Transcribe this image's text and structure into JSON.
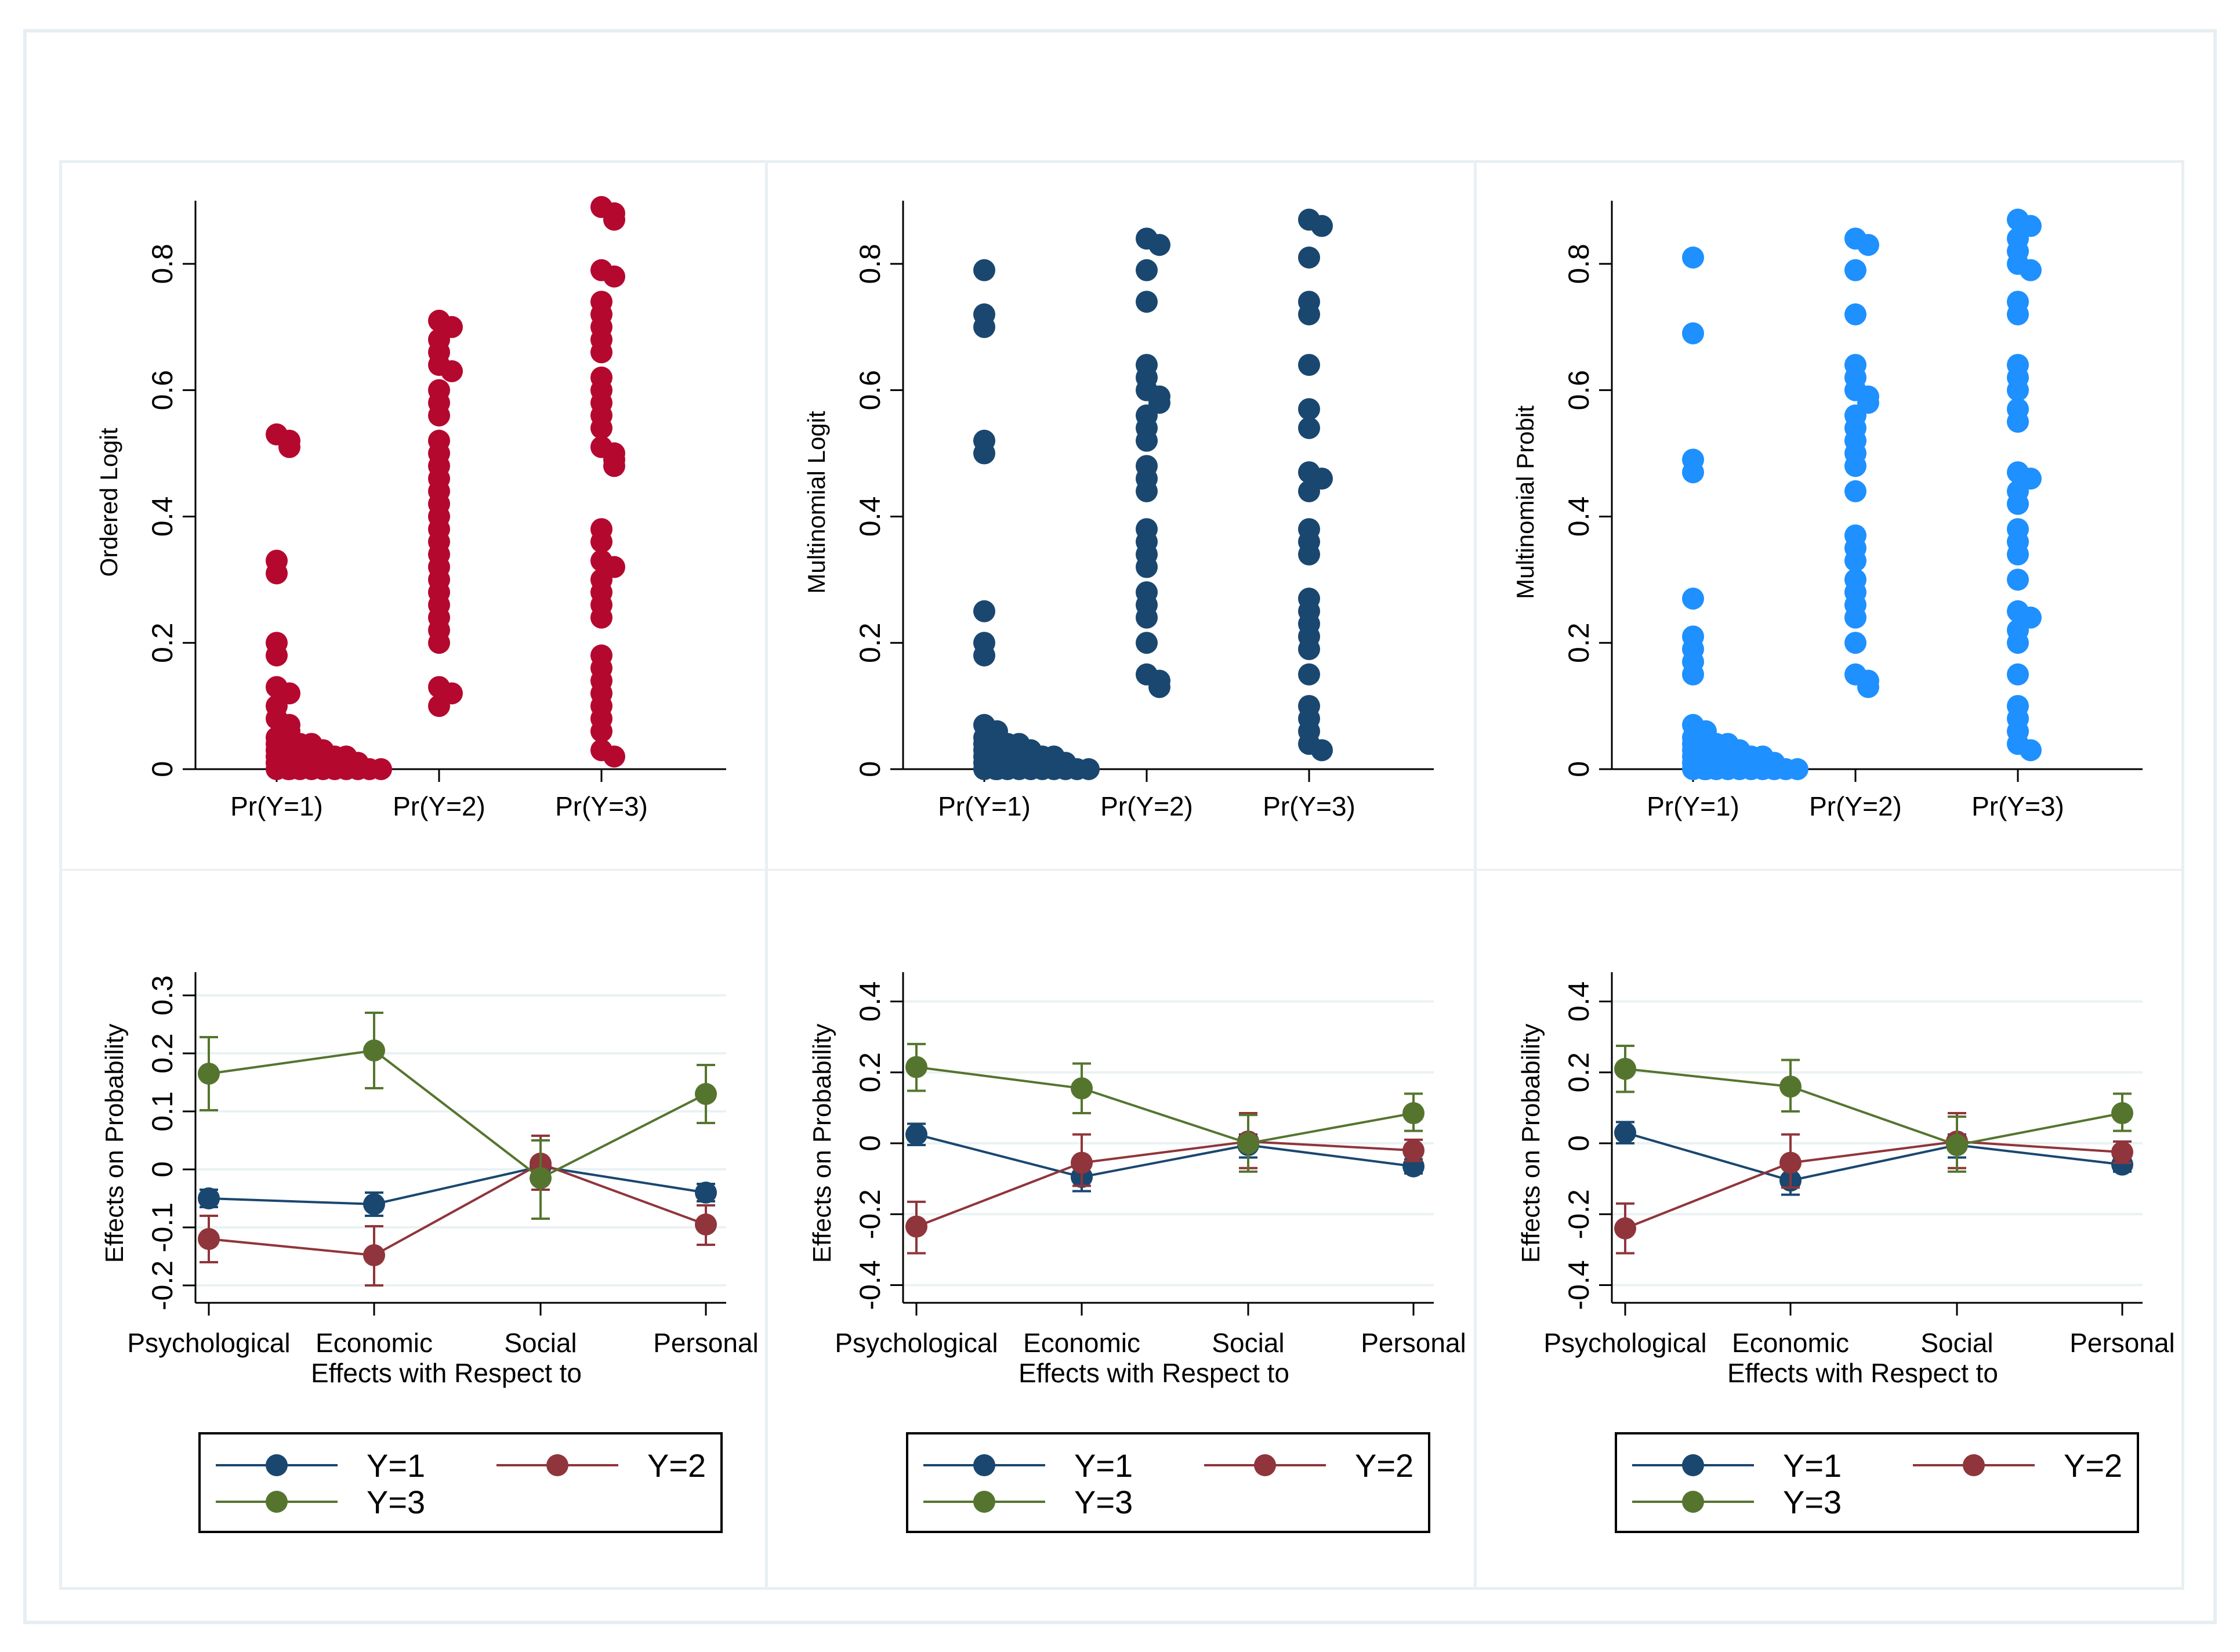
{
  "colors": {
    "ordered_logit": "#b5082f",
    "multinomial_logit": "#1a476f",
    "multinomial_probit": "#1e90ff",
    "y1": "#1a476f",
    "y2": "#90353b",
    "y3": "#55752f",
    "grid": "#eaf2f3",
    "axis": "#000000"
  },
  "chart_data": [
    {
      "type": "scatter",
      "panel": "top-left",
      "ylabel": "Ordered Logit",
      "xlabel": "",
      "categories": [
        "Pr(Y=1)",
        "Pr(Y=2)",
        "Pr(Y=3)"
      ],
      "ylim": [
        0,
        0.9
      ],
      "yticks": [
        0,
        0.2,
        0.4,
        0.6,
        0.8
      ],
      "ytick_labels": [
        "0",
        "0.2",
        "0.4",
        "0.6",
        "0.8"
      ],
      "color_key": "ordered_logit",
      "series": [
        {
          "name": "Pr(Y=1)",
          "values": [
            0.53,
            0.52,
            0.51,
            0.33,
            0.31,
            0.2,
            0.18,
            0.13,
            0.12,
            0.1,
            0.08,
            0.07,
            0.06,
            0.05,
            0.04,
            0.03,
            0.02,
            0.01,
            0.0
          ]
        },
        {
          "name": "Pr(Y=2)",
          "values": [
            0.71,
            0.7,
            0.68,
            0.66,
            0.64,
            0.63,
            0.6,
            0.58,
            0.56,
            0.52,
            0.5,
            0.48,
            0.46,
            0.44,
            0.42,
            0.4,
            0.38,
            0.36,
            0.34,
            0.32,
            0.3,
            0.28,
            0.26,
            0.24,
            0.22,
            0.2,
            0.13,
            0.12,
            0.1
          ]
        },
        {
          "name": "Pr(Y=3)",
          "values": [
            0.89,
            0.88,
            0.87,
            0.79,
            0.78,
            0.74,
            0.72,
            0.7,
            0.68,
            0.66,
            0.62,
            0.6,
            0.58,
            0.56,
            0.54,
            0.51,
            0.5,
            0.49,
            0.48,
            0.38,
            0.36,
            0.33,
            0.32,
            0.3,
            0.28,
            0.26,
            0.24,
            0.18,
            0.16,
            0.14,
            0.12,
            0.1,
            0.08,
            0.06,
            0.03,
            0.02
          ]
        }
      ]
    },
    {
      "type": "scatter",
      "panel": "top-middle",
      "ylabel": "Multinomial Logit",
      "xlabel": "",
      "categories": [
        "Pr(Y=1)",
        "Pr(Y=2)",
        "Pr(Y=3)"
      ],
      "ylim": [
        0,
        0.9
      ],
      "yticks": [
        0,
        0.2,
        0.4,
        0.6,
        0.8
      ],
      "ytick_labels": [
        "0",
        "0.2",
        "0.4",
        "0.6",
        "0.8"
      ],
      "color_key": "multinomial_logit",
      "series": [
        {
          "name": "Pr(Y=1)",
          "values": [
            0.79,
            0.72,
            0.7,
            0.52,
            0.5,
            0.25,
            0.2,
            0.18,
            0.07,
            0.06,
            0.05,
            0.04,
            0.03,
            0.02,
            0.01,
            0.0
          ]
        },
        {
          "name": "Pr(Y=2)",
          "values": [
            0.84,
            0.83,
            0.79,
            0.74,
            0.64,
            0.62,
            0.6,
            0.59,
            0.58,
            0.56,
            0.54,
            0.52,
            0.48,
            0.46,
            0.44,
            0.38,
            0.36,
            0.34,
            0.32,
            0.28,
            0.26,
            0.24,
            0.2,
            0.15,
            0.14,
            0.13
          ]
        },
        {
          "name": "Pr(Y=3)",
          "values": [
            0.87,
            0.86,
            0.81,
            0.74,
            0.72,
            0.64,
            0.57,
            0.54,
            0.47,
            0.46,
            0.44,
            0.38,
            0.36,
            0.34,
            0.27,
            0.25,
            0.23,
            0.21,
            0.19,
            0.15,
            0.1,
            0.08,
            0.06,
            0.04,
            0.03
          ]
        }
      ]
    },
    {
      "type": "scatter",
      "panel": "top-right",
      "ylabel": "Multinomial Probit",
      "xlabel": "",
      "categories": [
        "Pr(Y=1)",
        "Pr(Y=2)",
        "Pr(Y=3)"
      ],
      "ylim": [
        0,
        0.9
      ],
      "yticks": [
        0,
        0.2,
        0.4,
        0.6,
        0.8
      ],
      "ytick_labels": [
        "0",
        "0.2",
        "0.4",
        "0.6",
        "0.8"
      ],
      "color_key": "multinomial_probit",
      "series": [
        {
          "name": "Pr(Y=1)",
          "values": [
            0.81,
            0.69,
            0.49,
            0.47,
            0.27,
            0.21,
            0.19,
            0.17,
            0.15,
            0.07,
            0.06,
            0.05,
            0.04,
            0.03,
            0.02,
            0.01,
            0.0
          ]
        },
        {
          "name": "Pr(Y=2)",
          "values": [
            0.84,
            0.83,
            0.79,
            0.72,
            0.64,
            0.62,
            0.6,
            0.59,
            0.58,
            0.56,
            0.54,
            0.52,
            0.5,
            0.48,
            0.44,
            0.37,
            0.35,
            0.33,
            0.3,
            0.28,
            0.26,
            0.24,
            0.2,
            0.15,
            0.14,
            0.13
          ]
        },
        {
          "name": "Pr(Y=3)",
          "values": [
            0.87,
            0.86,
            0.84,
            0.82,
            0.8,
            0.79,
            0.74,
            0.72,
            0.64,
            0.62,
            0.6,
            0.57,
            0.55,
            0.47,
            0.46,
            0.44,
            0.42,
            0.38,
            0.36,
            0.34,
            0.3,
            0.25,
            0.24,
            0.22,
            0.2,
            0.15,
            0.1,
            0.08,
            0.06,
            0.04,
            0.03
          ]
        }
      ]
    },
    {
      "type": "line",
      "panel": "bottom-left",
      "ylabel": "Effects on Probability",
      "xlabel": "Effects with Respect to",
      "categories": [
        "Psychological",
        "Economic",
        "Social",
        "Personal"
      ],
      "ylim": [
        -0.23,
        0.32
      ],
      "yticks": [
        -0.2,
        -0.1,
        0,
        0.1,
        0.2,
        0.3
      ],
      "ytick_labels": [
        "-0.2",
        "-0.1",
        "0",
        "0.1",
        "0.2",
        "0.3"
      ],
      "legend_position": "bottom",
      "series": [
        {
          "name": "Y=1",
          "color_key": "y1",
          "values": [
            -0.05,
            -0.06,
            0.005,
            -0.04
          ],
          "ci_low": [
            -0.065,
            -0.08,
            -0.005,
            -0.055
          ],
          "ci_high": [
            -0.035,
            -0.04,
            0.015,
            -0.025
          ]
        },
        {
          "name": "Y=2",
          "color_key": "y2",
          "values": [
            -0.12,
            -0.148,
            0.01,
            -0.095
          ],
          "ci_low": [
            -0.16,
            -0.2,
            -0.035,
            -0.13
          ],
          "ci_high": [
            -0.08,
            -0.098,
            0.058,
            -0.062
          ]
        },
        {
          "name": "Y=3",
          "color_key": "y3",
          "values": [
            0.165,
            0.205,
            -0.015,
            0.13
          ],
          "ci_low": [
            0.102,
            0.14,
            -0.085,
            0.08
          ],
          "ci_high": [
            0.228,
            0.27,
            0.05,
            0.18
          ]
        }
      ],
      "legend": [
        "Y=1",
        "Y=2",
        "Y=3"
      ]
    },
    {
      "type": "line",
      "panel": "bottom-middle",
      "ylabel": "Effects on Probability",
      "xlabel": "Effects with Respect to",
      "categories": [
        "Psychological",
        "Economic",
        "Social",
        "Personal"
      ],
      "ylim": [
        -0.45,
        0.45
      ],
      "yticks": [
        -0.4,
        -0.2,
        0,
        0.2,
        0.4
      ],
      "ytick_labels": [
        "-0.4",
        "-0.2",
        "0",
        "0.2",
        "0.4"
      ],
      "legend_position": "bottom",
      "series": [
        {
          "name": "Y=1",
          "color_key": "y1",
          "values": [
            0.025,
            -0.095,
            -0.005,
            -0.065
          ],
          "ci_low": [
            -0.005,
            -0.135,
            -0.04,
            -0.085
          ],
          "ci_high": [
            0.055,
            -0.06,
            0.025,
            -0.045
          ]
        },
        {
          "name": "Y=2",
          "color_key": "y2",
          "values": [
            -0.235,
            -0.055,
            0.005,
            -0.02
          ],
          "ci_low": [
            -0.31,
            -0.12,
            -0.07,
            -0.05
          ],
          "ci_high": [
            -0.165,
            0.025,
            0.085,
            0.01
          ]
        },
        {
          "name": "Y=3",
          "color_key": "y3",
          "values": [
            0.215,
            0.155,
            0.0,
            0.085
          ],
          "ci_low": [
            0.148,
            0.085,
            -0.08,
            0.035
          ],
          "ci_high": [
            0.28,
            0.225,
            0.08,
            0.14
          ]
        }
      ],
      "legend": [
        "Y=1",
        "Y=2",
        "Y=3"
      ]
    },
    {
      "type": "line",
      "panel": "bottom-right",
      "ylabel": "Effects on Probability",
      "xlabel": "Effects with Respect to",
      "categories": [
        "Psychological",
        "Economic",
        "Social",
        "Personal"
      ],
      "ylim": [
        -0.45,
        0.45
      ],
      "yticks": [
        -0.4,
        -0.2,
        0,
        0.2,
        0.4
      ],
      "ytick_labels": [
        "-0.4",
        "-0.2",
        "0",
        "0.2",
        "0.4"
      ],
      "legend_position": "bottom",
      "series": [
        {
          "name": "Y=1",
          "color_key": "y1",
          "values": [
            0.03,
            -0.105,
            -0.005,
            -0.06
          ],
          "ci_low": [
            0.0,
            -0.145,
            -0.04,
            -0.08
          ],
          "ci_high": [
            0.06,
            -0.065,
            0.025,
            -0.04
          ]
        },
        {
          "name": "Y=2",
          "color_key": "y2",
          "values": [
            -0.24,
            -0.055,
            0.005,
            -0.025
          ],
          "ci_low": [
            -0.31,
            -0.125,
            -0.07,
            -0.055
          ],
          "ci_high": [
            -0.17,
            0.025,
            0.085,
            0.005
          ]
        },
        {
          "name": "Y=3",
          "color_key": "y3",
          "values": [
            0.21,
            0.16,
            -0.005,
            0.085
          ],
          "ci_low": [
            0.145,
            0.09,
            -0.08,
            0.035
          ],
          "ci_high": [
            0.275,
            0.235,
            0.075,
            0.14
          ]
        }
      ],
      "legend": [
        "Y=1",
        "Y=2",
        "Y=3"
      ]
    }
  ]
}
